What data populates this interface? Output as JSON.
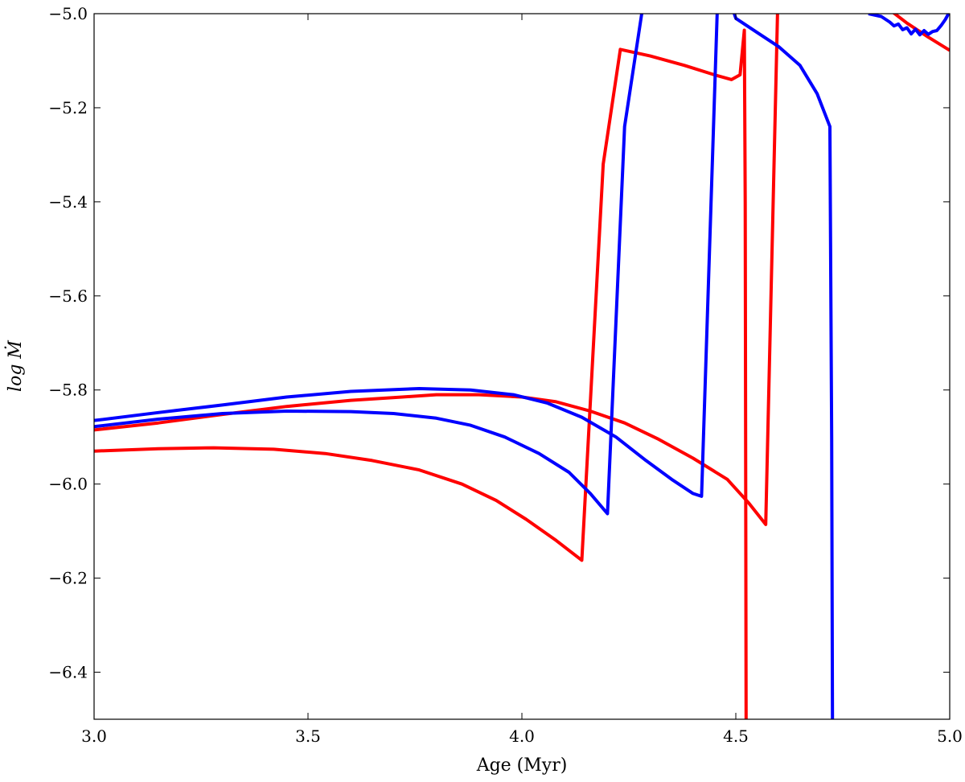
{
  "chart_data": {
    "type": "line",
    "xlabel": "Age (Myr)",
    "ylabel": "log Ṁ",
    "xlim": [
      3.0,
      5.0
    ],
    "ylim": [
      -6.5,
      -5.0
    ],
    "xticks": [
      "3.0",
      "3.5",
      "4.0",
      "4.5",
      "5.0"
    ],
    "yticks": [
      "−5.0",
      "−5.2",
      "−5.4",
      "−5.6",
      "−5.8",
      "−6.0",
      "−6.2",
      "−6.4"
    ],
    "xtick_values": [
      3.0,
      3.5,
      4.0,
      4.5,
      5.0
    ],
    "ytick_values": [
      -5.0,
      -5.2,
      -5.4,
      -5.6,
      -5.8,
      -6.0,
      -6.2,
      -6.4
    ],
    "grid": false,
    "colors": {
      "red": "#ff0000",
      "blue": "#0000ff"
    },
    "series": [
      {
        "color": "#ff0000",
        "x": [
          3.0,
          3.15,
          3.28,
          3.42,
          3.54,
          3.65,
          3.76,
          3.86,
          3.94,
          4.01,
          4.08,
          4.14,
          4.19,
          4.23,
          4.3,
          4.38,
          4.45,
          4.49,
          4.51,
          4.52,
          4.522,
          4.524
        ],
        "y": [
          -5.93,
          -5.925,
          -5.923,
          -5.926,
          -5.935,
          -5.95,
          -5.97,
          -6.0,
          -6.035,
          -6.075,
          -6.12,
          -6.162,
          -5.32,
          -5.076,
          -5.09,
          -5.11,
          -5.13,
          -5.14,
          -5.13,
          -5.035,
          -5.4,
          -6.5
        ]
      },
      {
        "color": "#ff0000",
        "x": [
          3.0,
          3.15,
          3.3,
          3.45,
          3.6,
          3.72,
          3.8,
          3.9,
          4.0,
          4.08,
          4.16,
          4.24,
          4.32,
          4.4,
          4.48,
          4.53,
          4.57,
          4.6,
          4.8,
          4.9,
          4.95,
          5.0
        ],
        "y": [
          -5.885,
          -5.87,
          -5.852,
          -5.835,
          -5.822,
          -5.815,
          -5.81,
          -5.81,
          -5.815,
          -5.825,
          -5.845,
          -5.87,
          -5.905,
          -5.945,
          -5.99,
          -6.04,
          -6.086,
          -4.9,
          -4.95,
          -5.02,
          -5.05,
          -5.078
        ]
      },
      {
        "color": "#0000ff",
        "x": [
          3.0,
          3.15,
          3.3,
          3.45,
          3.6,
          3.7,
          3.8,
          3.88,
          3.96,
          4.04,
          4.11,
          4.16,
          4.2,
          4.24,
          4.28,
          4.3
        ],
        "y": [
          -5.878,
          -5.862,
          -5.85,
          -5.845,
          -5.846,
          -5.85,
          -5.86,
          -5.875,
          -5.9,
          -5.935,
          -5.975,
          -6.02,
          -6.063,
          -5.24,
          -5.0,
          -4.9
        ]
      },
      {
        "color": "#0000ff",
        "x": [
          3.0,
          3.15,
          3.3,
          3.45,
          3.6,
          3.76,
          3.88,
          3.98,
          4.06,
          4.14,
          4.22,
          4.29,
          4.35,
          4.4,
          4.42,
          4.46,
          4.5,
          4.55,
          4.6,
          4.65,
          4.69,
          4.72,
          4.724,
          4.726
        ],
        "y": [
          -5.865,
          -5.848,
          -5.832,
          -5.815,
          -5.803,
          -5.797,
          -5.8,
          -5.81,
          -5.828,
          -5.858,
          -5.9,
          -5.95,
          -5.99,
          -6.02,
          -6.026,
          -4.9,
          -5.01,
          -5.04,
          -5.07,
          -5.11,
          -5.17,
          -5.24,
          -5.9,
          -6.5
        ]
      },
      {
        "color": "#0000ff",
        "x": [
          4.81,
          4.84,
          4.86,
          4.87,
          4.88,
          4.89,
          4.9,
          4.91,
          4.92,
          4.93,
          4.94,
          4.95,
          4.96,
          4.97,
          4.98,
          4.99,
          5.0
        ],
        "y": [
          -5.0,
          -5.006,
          -5.018,
          -5.026,
          -5.022,
          -5.034,
          -5.03,
          -5.043,
          -5.033,
          -5.045,
          -5.036,
          -5.044,
          -5.038,
          -5.036,
          -5.025,
          -5.012,
          -4.995
        ]
      }
    ]
  }
}
